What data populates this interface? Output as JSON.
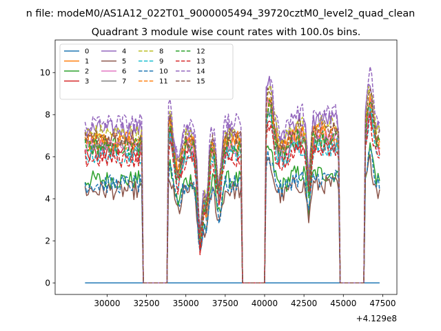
{
  "chart_data": {
    "type": "line",
    "suptitle": "n file: modeM0/AS1A12_022T01_9000005494_39720cztM0_level2_quad_clean",
    "title": "Quadrant 3 module wise count rates with 100.0s bins.",
    "xlabel": "",
    "ylabel": "",
    "offset_text": "+4.129e8",
    "x_offset": 412900000,
    "xlim": [
      26700,
      48400
    ],
    "ylim": [
      -0.55,
      11.55
    ],
    "x_ticks": [
      30000,
      32500,
      35000,
      37500,
      40000,
      42500,
      45000,
      47500
    ],
    "x_tick_labels": [
      "30000",
      "32500",
      "35000",
      "37500",
      "40000",
      "42500",
      "45000",
      "47500"
    ],
    "y_ticks": [
      0,
      2,
      4,
      6,
      8,
      10
    ],
    "y_tick_labels": [
      "0",
      "2",
      "4",
      "6",
      "8",
      "10"
    ],
    "grid": false,
    "legend": {
      "placement": "top-left",
      "columns": 4
    },
    "x_start": 28600,
    "x_end": 47300,
    "x_step": 100,
    "active_segments": [
      [
        28600,
        32250
      ],
      [
        33900,
        38500
      ],
      [
        40100,
        44700
      ],
      [
        46400,
        47300
      ]
    ],
    "series": [
      {
        "name": "0",
        "color": "#1f77b4",
        "style": "solid",
        "level": 0
      },
      {
        "name": "1",
        "color": "#ff7f0e",
        "style": "solid",
        "level": 6.8
      },
      {
        "name": "2",
        "color": "#2ca02c",
        "style": "solid",
        "level": 4.9
      },
      {
        "name": "3",
        "color": "#d62728",
        "style": "solid",
        "level": 6.2
      },
      {
        "name": "4",
        "color": "#9467bd",
        "style": "solid",
        "level": 7.3
      },
      {
        "name": "5",
        "color": "#8c564b",
        "style": "solid",
        "level": 4.4
      },
      {
        "name": "6",
        "color": "#e377c2",
        "style": "solid",
        "level": 6.6
      },
      {
        "name": "7",
        "color": "#7f7f7f",
        "style": "solid",
        "level": 6.4
      },
      {
        "name": "8",
        "color": "#bcbd22",
        "style": "dashed",
        "level": 7.1
      },
      {
        "name": "9",
        "color": "#17becf",
        "style": "dashed",
        "level": 6.1
      },
      {
        "name": "10",
        "color": "#1f77b4",
        "style": "dashed",
        "level": 4.7
      },
      {
        "name": "11",
        "color": "#ff7f0e",
        "style": "dashed",
        "level": 6.7
      },
      {
        "name": "12",
        "color": "#2ca02c",
        "style": "dashed",
        "level": 6.5
      },
      {
        "name": "13",
        "color": "#d62728",
        "style": "dashed",
        "level": 5.9
      },
      {
        "name": "14",
        "color": "#9467bd",
        "style": "dashed",
        "level": 7.6
      },
      {
        "name": "15",
        "color": "#8c564b",
        "style": "dashed",
        "level": 6.9
      }
    ]
  }
}
